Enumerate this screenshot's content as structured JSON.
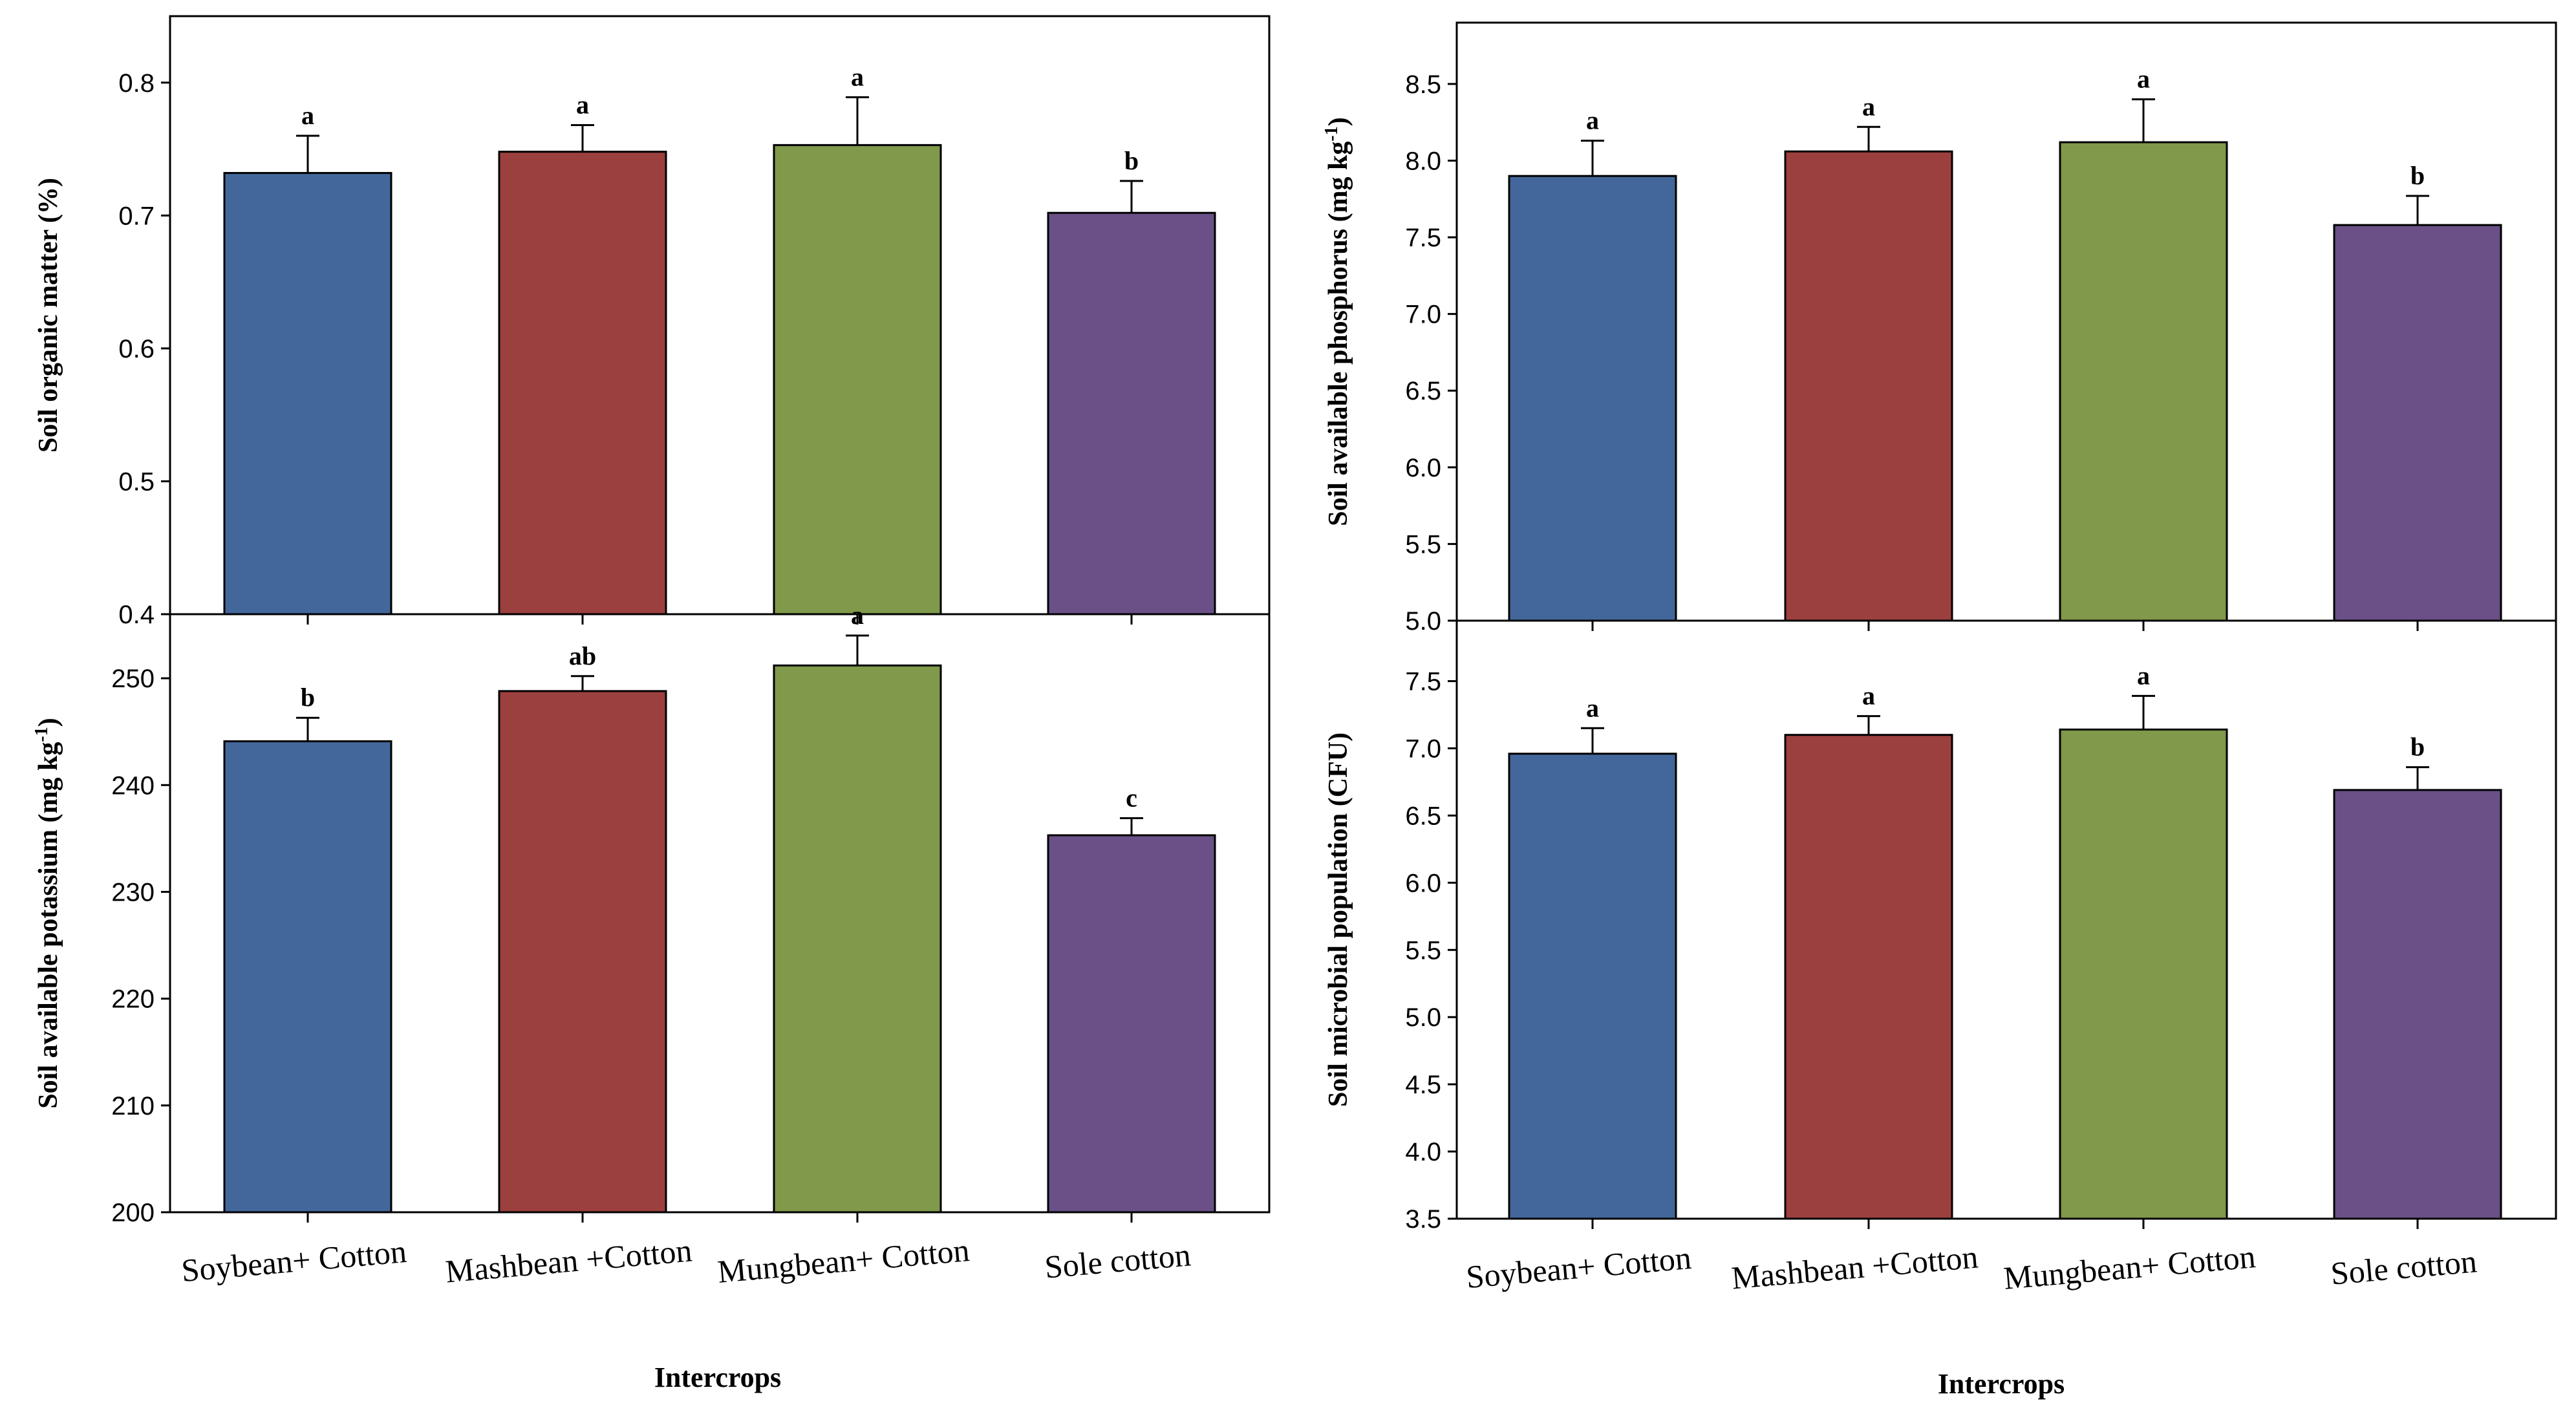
{
  "colors": {
    "series": [
      "#43679b",
      "#9b403e",
      "#80994a",
      "#6a5087"
    ],
    "bar_outline": "#000000",
    "frame": "#000000"
  },
  "left_xlabel": "Intercrops",
  "right_xlabel": "Intercrops",
  "chart_data": [
    {
      "type": "bar",
      "ylabel": "Soil organic matter (%)",
      "xlabel": "",
      "categories": [
        "Soybean+ Cotton",
        "Mashbean +Cotton",
        "Mungbean+ Cotton",
        "Sole cotton"
      ],
      "values": [
        0.732,
        0.748,
        0.753,
        0.702
      ],
      "errors": [
        0.028,
        0.02,
        0.036,
        0.024
      ],
      "significance": [
        "a",
        "a",
        "a",
        "b"
      ],
      "ylim": [
        0.4,
        0.85
      ],
      "yticks": [
        0.4,
        0.5,
        0.6,
        0.7,
        0.8
      ],
      "ytick_labels": [
        "0.4",
        "0.5",
        "0.6",
        "0.7",
        "0.8"
      ],
      "show_category_labels": false,
      "grid": false
    },
    {
      "type": "bar",
      "ylabel": "Soil available phosphorus (mg kg",
      "ylabel_sup": "-1",
      "ylabel_end": ")",
      "xlabel": "",
      "categories": [
        "Soybean+ Cotton",
        "Mashbean +Cotton",
        "Mungbean+ Cotton",
        "Sole cotton"
      ],
      "values": [
        7.9,
        8.06,
        8.12,
        7.58
      ],
      "errors": [
        0.23,
        0.16,
        0.28,
        0.19
      ],
      "significance": [
        "a",
        "a",
        "a",
        "b"
      ],
      "ylim": [
        5.0,
        8.9
      ],
      "yticks": [
        5.0,
        5.5,
        6.0,
        6.5,
        7.0,
        7.5,
        8.0,
        8.5
      ],
      "ytick_labels": [
        "5.0",
        "5.5",
        "6.0",
        "6.5",
        "7.0",
        "7.5",
        "8.0",
        "8.5"
      ],
      "show_category_labels": false,
      "grid": false
    },
    {
      "type": "bar",
      "ylabel": "Soil available potassium (mg kg",
      "ylabel_sup": "-1",
      "ylabel_end": ")",
      "xlabel": "Intercrops",
      "categories": [
        "Soybean+ Cotton",
        "Mashbean +Cotton",
        "Mungbean+ Cotton",
        "Sole cotton"
      ],
      "values": [
        244.1,
        248.8,
        251.2,
        235.3
      ],
      "errors": [
        2.2,
        1.4,
        2.8,
        1.6
      ],
      "significance": [
        "b",
        "ab",
        "a",
        "c"
      ],
      "ylim": [
        200,
        256
      ],
      "yticks": [
        200,
        210,
        220,
        230,
        240,
        250
      ],
      "ytick_labels": [
        "200",
        "210",
        "220",
        "230",
        "240",
        "250"
      ],
      "show_category_labels": true,
      "grid": false
    },
    {
      "type": "bar",
      "ylabel": "Soil microbial population (CFU)",
      "xlabel": "Intercrops",
      "categories": [
        "Soybean+ Cotton",
        "Mashbean +Cotton",
        "Mungbean+ Cotton",
        "Sole cotton"
      ],
      "values": [
        6.96,
        7.1,
        7.14,
        6.69
      ],
      "errors": [
        0.19,
        0.14,
        0.25,
        0.17
      ],
      "significance": [
        "a",
        "a",
        "a",
        "b"
      ],
      "ylim": [
        3.5,
        7.95
      ],
      "yticks": [
        3.5,
        4.0,
        4.5,
        5.0,
        5.5,
        6.0,
        6.5,
        7.0,
        7.5
      ],
      "ytick_labels": [
        "3.5",
        "4.0",
        "4.5",
        "5.0",
        "5.5",
        "6.0",
        "6.5",
        "7.0",
        "7.5"
      ],
      "show_category_labels": true,
      "grid": false
    }
  ]
}
